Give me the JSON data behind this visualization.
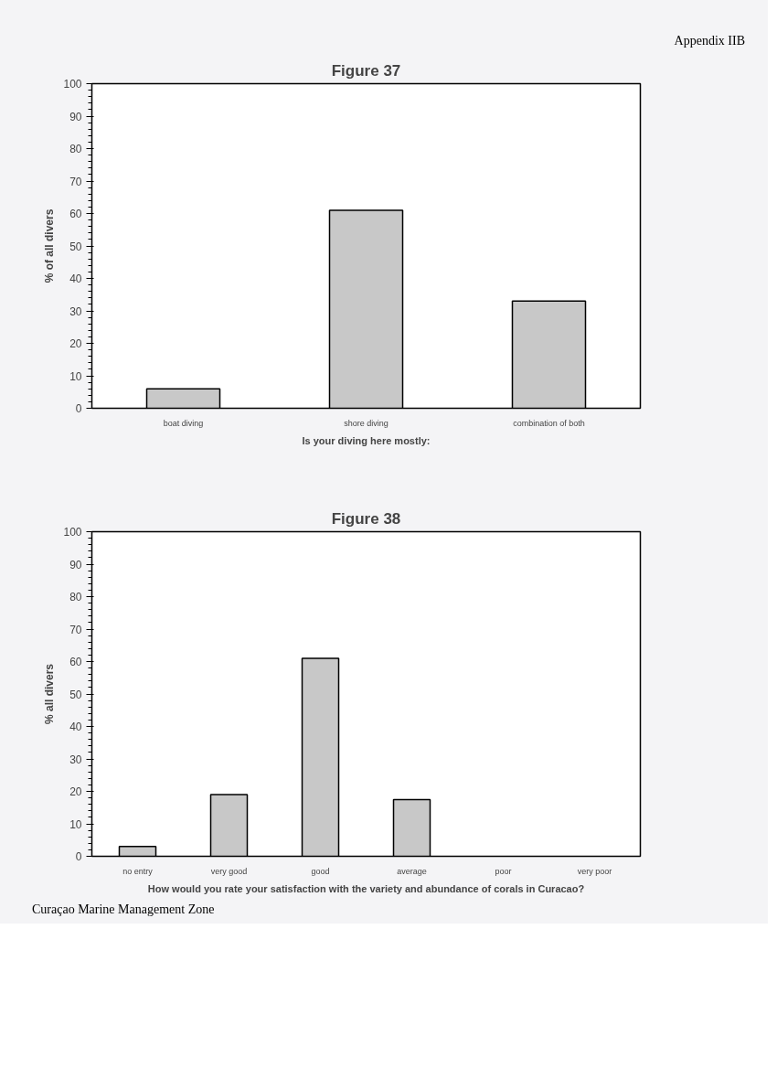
{
  "chart_data": [
    {
      "type": "bar",
      "title": "Figure 37",
      "xlabel": "Is your diving here mostly:",
      "ylabel": "% of all divers",
      "categories": [
        "boat diving",
        "shore diving",
        "combination of both"
      ],
      "values": [
        6,
        61,
        33
      ],
      "color": "#c8c8c8",
      "ylim": [
        0,
        100
      ],
      "yticks": [
        0,
        10,
        20,
        30,
        40,
        50,
        60,
        70,
        80,
        90,
        100
      ],
      "grid": false,
      "annotations": [
        "Appendix IIB"
      ]
    },
    {
      "type": "bar",
      "title": "Figure 38",
      "xlabel": "How would you rate your satisfaction with the variety and abundance of corals in Curacao?",
      "ylabel": "% all divers",
      "categories": [
        "no entry",
        "very good",
        "good",
        "average",
        "poor",
        "very poor"
      ],
      "values": [
        3,
        19,
        61,
        17.5,
        0,
        0
      ],
      "color": "#c8c8c8",
      "ylim": [
        0,
        100
      ],
      "yticks": [
        0,
        10,
        20,
        30,
        40,
        50,
        60,
        70,
        80,
        90,
        100
      ],
      "grid": false,
      "annotations": [
        "Curaçao Marine Management Zone"
      ]
    }
  ]
}
